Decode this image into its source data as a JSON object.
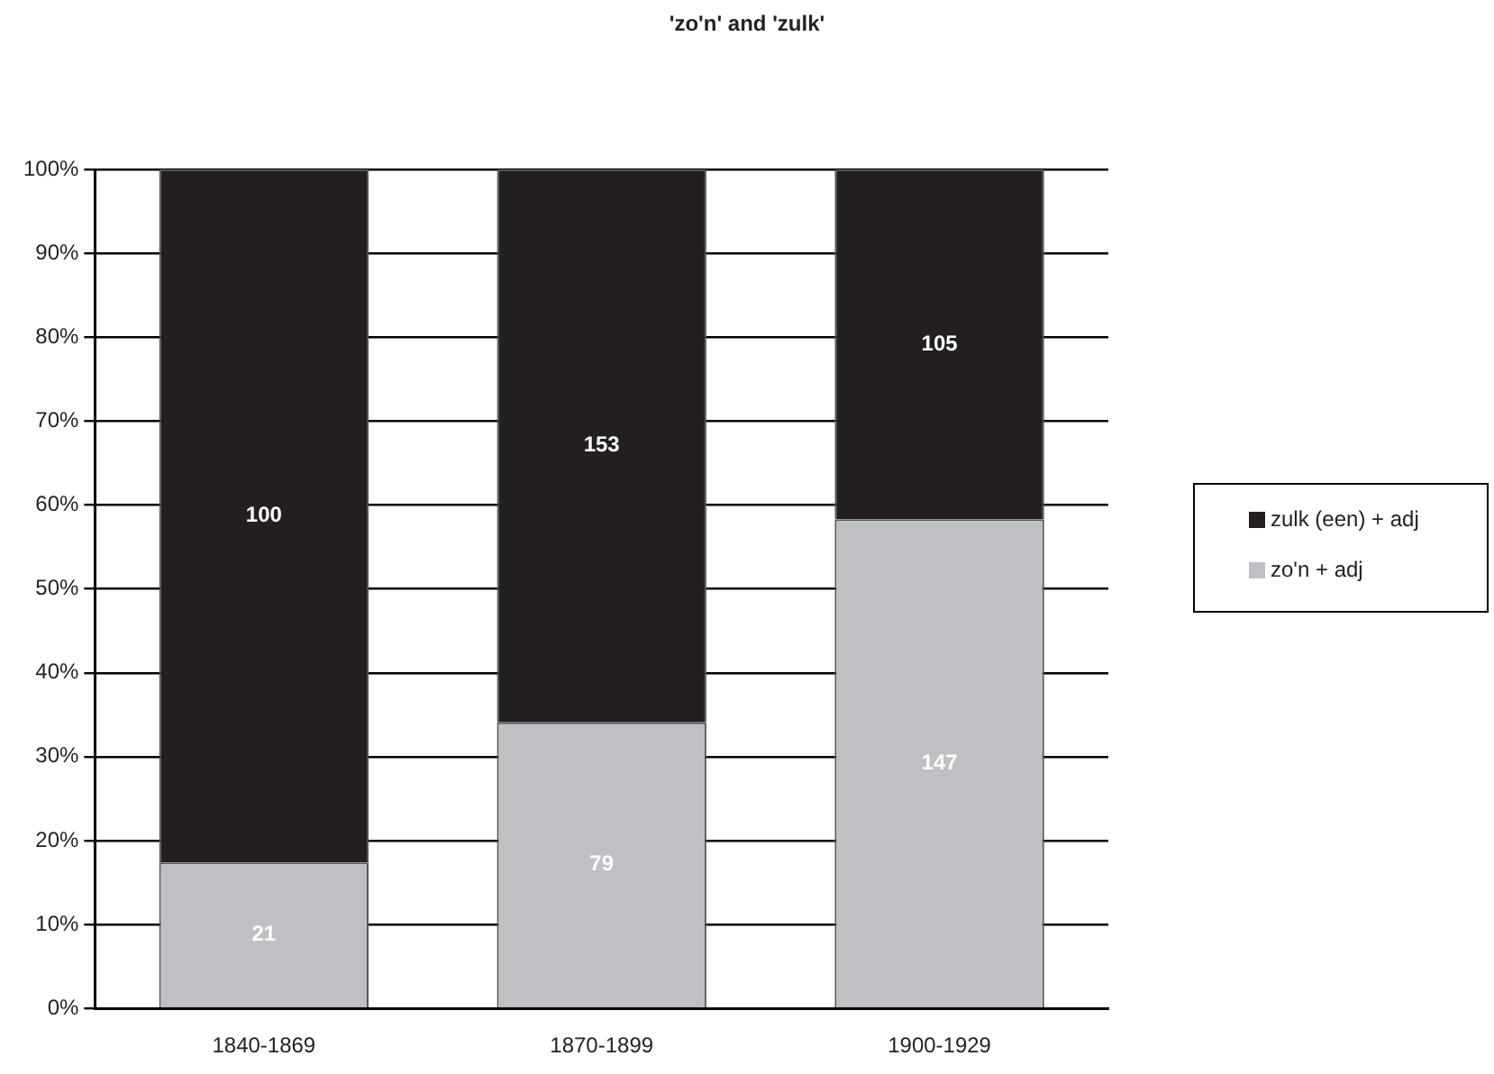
{
  "chart_data": {
    "type": "bar",
    "stacked": true,
    "title": "'zo'n' and 'zulk'",
    "categories": [
      "1840-1869",
      "1870-1899",
      "1900-1929"
    ],
    "series": [
      {
        "name": "zo'n + adj",
        "color": "#bfc0c4",
        "values": [
          17.4,
          34.1,
          58.3
        ]
      },
      {
        "name": "zulk (een) + adj",
        "color": "#231f20",
        "values": [
          82.6,
          65.9,
          41.7
        ]
      }
    ],
    "annotations": [
      "21",
      "79",
      "147",
      "100",
      "153",
      "105"
    ],
    "ylim": [
      0,
      100
    ],
    "yticks": [
      {
        "value": 0,
        "label": "0%"
      },
      {
        "value": 10,
        "label": "10%"
      },
      {
        "value": 20,
        "label": "20%"
      },
      {
        "value": 30,
        "label": "30%"
      },
      {
        "value": 40,
        "label": "40%"
      },
      {
        "value": 50,
        "label": "50%"
      },
      {
        "value": 60,
        "label": "60%"
      },
      {
        "value": 70,
        "label": "70%"
      },
      {
        "value": 80,
        "label": "80%"
      },
      {
        "value": 90,
        "label": "90%"
      },
      {
        "value": 100,
        "label": "100%"
      }
    ],
    "grid": "y",
    "legend": "right"
  }
}
